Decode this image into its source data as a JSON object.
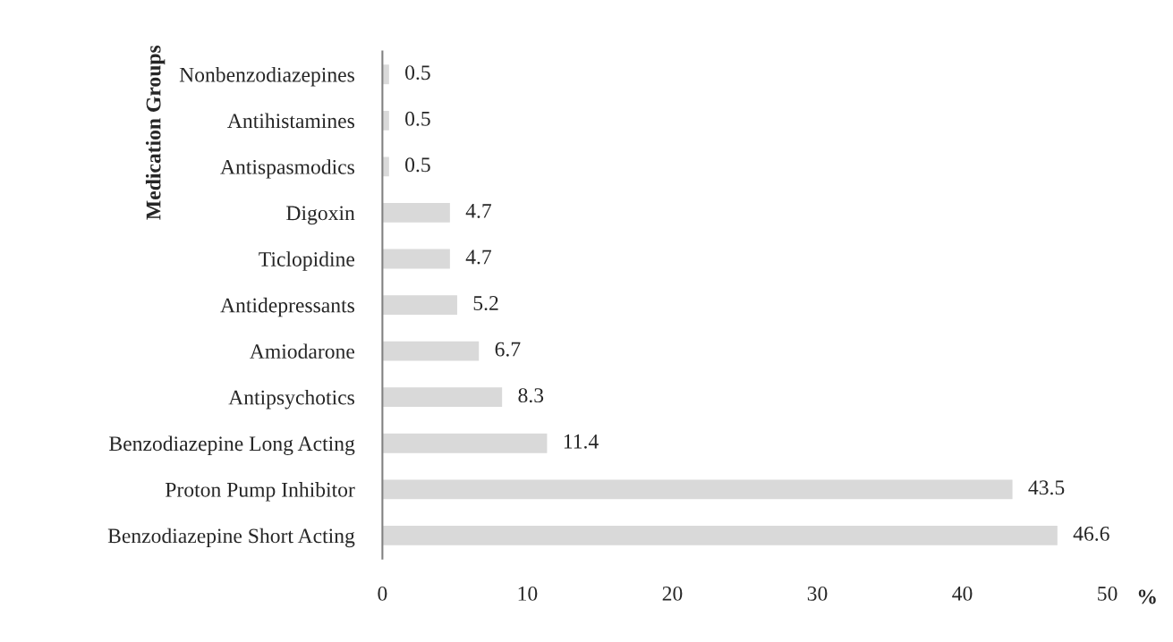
{
  "chart_data": {
    "type": "bar",
    "orientation": "horizontal",
    "ylabel": "Medication Groups",
    "xlabel": "%",
    "categories": [
      "Nonbenzodiazepines",
      "Antihistamines",
      "Antispasmodics",
      "Digoxin",
      "Ticlopidine",
      "Antidepressants",
      "Amiodarone",
      "Antipsychotics",
      "Benzodiazepine Long Acting",
      "Proton Pump Inhibitor",
      "Benzodiazepine Short Acting"
    ],
    "values": [
      0.5,
      0.5,
      0.5,
      4.7,
      4.7,
      5.2,
      6.7,
      8.3,
      11.4,
      43.5,
      46.6
    ],
    "color": "#d9d9d9",
    "xlim": [
      0,
      50
    ],
    "xticks": [
      0,
      10,
      20,
      30,
      40,
      50
    ],
    "data_labels": true,
    "grid": false,
    "legend": false
  }
}
